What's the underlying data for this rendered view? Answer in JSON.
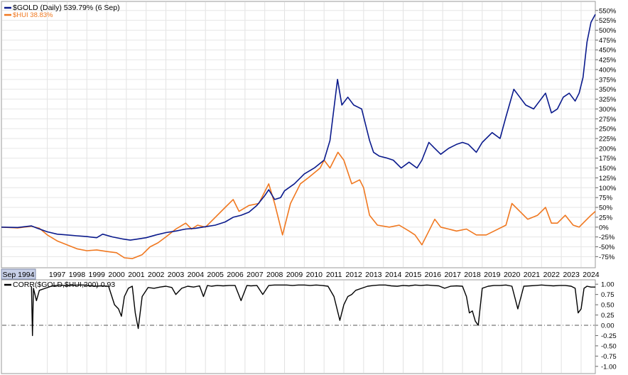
{
  "chart_data": [
    {
      "type": "line",
      "title": "",
      "ylim": [
        -87,
        555
      ],
      "y_ticks": [
        550,
        525,
        500,
        475,
        450,
        425,
        400,
        375,
        350,
        325,
        300,
        275,
        250,
        225,
        200,
        175,
        150,
        125,
        100,
        75,
        50,
        25,
        0,
        -25,
        -50,
        -75
      ],
      "y_tick_labels": [
        "550%",
        "525%",
        "500%",
        "475%",
        "450%",
        "425%",
        "400%",
        "375%",
        "350%",
        "325%",
        "300%",
        "275%",
        "250%",
        "225%",
        "200%",
        "175%",
        "150%",
        "125%",
        "100%",
        "75%",
        "50%",
        "25%",
        "0%",
        "-25%",
        "-50%",
        "-75%"
      ],
      "xlim": [
        1994.68,
        2024.72
      ],
      "x_ticks": [
        1997,
        1998,
        1999,
        2000,
        2001,
        2002,
        2003,
        2004,
        2005,
        2006,
        2007,
        2008,
        2009,
        2010,
        2011,
        2012,
        2013,
        2014,
        2015,
        2016,
        2017,
        2018,
        2019,
        2020,
        2021,
        2022,
        2023,
        2024
      ],
      "x_tick_labels": [
        "1997",
        "1998",
        "1999",
        "2000",
        "2001",
        "2002",
        "2003",
        "2004",
        "2005",
        "2006",
        "2007",
        "2008",
        "2009",
        "2010",
        "2011",
        "2012",
        "2013",
        "2014",
        "2015",
        "2016",
        "2017",
        "2018",
        "2019",
        "2020",
        "2021",
        "2022",
        "2023",
        "2024"
      ],
      "x_start_label": "Sep 1994",
      "grid": true,
      "legend_position": "top-left",
      "series": [
        {
          "name": "$GOLD (Daily) 539.79% (6 Sep)",
          "color": "#0a1a8c",
          "x": [
            1994.68,
            1995.5,
            1996.2,
            1996.5,
            1997.0,
            1997.5,
            1998.0,
            1998.5,
            1999.0,
            1999.5,
            1999.8,
            2000.3,
            2000.8,
            2001.2,
            2001.6,
            2002.0,
            2002.5,
            2003.0,
            2003.5,
            2004.0,
            2004.5,
            2005.0,
            2005.5,
            2006.0,
            2006.4,
            2006.8,
            2007.2,
            2007.6,
            2008.0,
            2008.2,
            2008.5,
            2008.8,
            2009.0,
            2009.5,
            2010.0,
            2010.5,
            2011.0,
            2011.3,
            2011.68,
            2011.9,
            2012.2,
            2012.5,
            2012.9,
            2013.3,
            2013.5,
            2013.8,
            2014.2,
            2014.5,
            2014.9,
            2015.3,
            2015.7,
            2015.95,
            2016.3,
            2016.6,
            2016.9,
            2017.3,
            2017.7,
            2018.0,
            2018.3,
            2018.7,
            2019.0,
            2019.5,
            2019.9,
            2020.2,
            2020.6,
            2020.9,
            2021.2,
            2021.6,
            2021.9,
            2022.2,
            2022.5,
            2022.8,
            2023.1,
            2023.4,
            2023.7,
            2023.9,
            2024.1,
            2024.3,
            2024.5,
            2024.72
          ],
          "values": [
            0,
            -1,
            3,
            -3,
            -12,
            -18,
            -20,
            -22,
            -24,
            -27,
            -18,
            -25,
            -30,
            -33,
            -30,
            -27,
            -20,
            -14,
            -10,
            -5,
            -3,
            1,
            5,
            13,
            25,
            30,
            38,
            55,
            80,
            95,
            70,
            75,
            92,
            110,
            135,
            150,
            170,
            220,
            375,
            310,
            330,
            310,
            300,
            220,
            190,
            180,
            175,
            170,
            150,
            165,
            150,
            170,
            215,
            200,
            185,
            200,
            210,
            215,
            210,
            190,
            215,
            240,
            225,
            280,
            350,
            330,
            310,
            300,
            320,
            340,
            290,
            300,
            330,
            340,
            320,
            340,
            380,
            470,
            520,
            540
          ]
        },
        {
          "name": "$HUI 38.83%",
          "color": "#f07820",
          "x": [
            1994.68,
            1995.5,
            1996.2,
            1996.6,
            1997.0,
            1997.5,
            1998.0,
            1998.5,
            1999.0,
            1999.5,
            2000.0,
            2000.5,
            2000.9,
            2001.3,
            2001.8,
            2002.2,
            2002.6,
            2003.0,
            2003.5,
            2004.0,
            2004.3,
            2004.6,
            2005.0,
            2005.5,
            2006.0,
            2006.4,
            2006.7,
            2007.2,
            2007.7,
            2008.2,
            2008.5,
            2008.9,
            2009.3,
            2009.8,
            2010.2,
            2010.8,
            2011.0,
            2011.3,
            2011.7,
            2012.0,
            2012.4,
            2012.8,
            2013.0,
            2013.3,
            2013.7,
            2014.3,
            2014.8,
            2015.3,
            2015.6,
            2015.95,
            2016.3,
            2016.6,
            2016.9,
            2017.3,
            2017.7,
            2018.2,
            2018.7,
            2019.2,
            2019.6,
            2020.2,
            2020.5,
            2020.9,
            2021.3,
            2021.8,
            2022.2,
            2022.5,
            2022.8,
            2023.2,
            2023.6,
            2023.9,
            2024.2,
            2024.5,
            2024.72
          ],
          "values": [
            0,
            -2,
            2,
            -3,
            -20,
            -35,
            -45,
            -55,
            -60,
            -58,
            -62,
            -65,
            -78,
            -80,
            -70,
            -50,
            -40,
            -25,
            -5,
            10,
            -5,
            5,
            0,
            25,
            50,
            70,
            40,
            55,
            60,
            110,
            60,
            -20,
            60,
            110,
            125,
            150,
            170,
            150,
            190,
            170,
            110,
            120,
            100,
            30,
            5,
            0,
            5,
            -10,
            -20,
            -45,
            -10,
            20,
            0,
            -5,
            -10,
            -5,
            -20,
            -20,
            -10,
            5,
            60,
            40,
            20,
            30,
            50,
            10,
            10,
            30,
            5,
            0,
            15,
            30,
            40
          ]
        }
      ]
    },
    {
      "type": "line",
      "title": "",
      "ylim": [
        -1.02,
        1.02
      ],
      "y_ticks": [
        1.0,
        0.75,
        0.5,
        0.25,
        0.0,
        -0.25,
        -0.5,
        -0.75,
        -1.0
      ],
      "y_tick_labels": [
        "1.00",
        "0.75",
        "0.50",
        "0.25",
        "0.00",
        "-0.25",
        "-0.50",
        "-0.75",
        "-1.00"
      ],
      "zero_line": "dash-dot",
      "legend_position": "top-left",
      "series": [
        {
          "name": "CORR($GOLD,$HUI,200) 0.93",
          "color": "#000000",
          "x": [
            1996.2,
            1996.25,
            1996.3,
            1996.45,
            1996.6,
            1996.9,
            1997.2,
            1997.6,
            1997.9,
            1998.2,
            1998.6,
            1998.9,
            1999.2,
            1999.5,
            1999.7,
            2000.1,
            2000.4,
            2000.6,
            2000.75,
            2000.9,
            2001.1,
            2001.3,
            2001.45,
            2001.6,
            2001.8,
            2002.1,
            2002.4,
            2002.7,
            2003.0,
            2003.3,
            2003.5,
            2003.8,
            2004.1,
            2004.4,
            2004.7,
            2004.9,
            2005.1,
            2005.3,
            2005.6,
            2005.9,
            2006.2,
            2006.5,
            2006.8,
            2007.1,
            2007.3,
            2007.6,
            2007.9,
            2008.2,
            2008.5,
            2008.8,
            2009.1,
            2009.4,
            2009.7,
            2010.0,
            2010.3,
            2010.6,
            2010.9,
            2011.2,
            2011.5,
            2011.8,
            2012.0,
            2012.2,
            2012.4,
            2012.6,
            2012.9,
            2013.2,
            2013.5,
            2013.8,
            2014.1,
            2014.4,
            2014.7,
            2015.0,
            2015.3,
            2015.6,
            2015.9,
            2016.2,
            2016.5,
            2016.8,
            2017.1,
            2017.4,
            2017.7,
            2018.0,
            2018.2,
            2018.35,
            2018.5,
            2018.65,
            2018.8,
            2019.0,
            2019.3,
            2019.6,
            2019.9,
            2020.2,
            2020.5,
            2020.8,
            2021.1,
            2021.4,
            2021.7,
            2022.0,
            2022.3,
            2022.6,
            2022.9,
            2023.2,
            2023.5,
            2023.7,
            2023.85,
            2024.0,
            2024.15,
            2024.3,
            2024.5,
            2024.72
          ],
          "values": [
            0.95,
            -0.25,
            0.9,
            0.6,
            0.85,
            0.9,
            0.95,
            0.98,
            0.97,
            0.97,
            0.98,
            0.98,
            0.96,
            0.95,
            0.96,
            0.95,
            0.5,
            0.4,
            0.22,
            0.7,
            0.9,
            0.95,
            0.3,
            -0.08,
            0.7,
            0.92,
            0.9,
            0.93,
            0.95,
            0.92,
            0.75,
            0.9,
            0.95,
            0.93,
            0.96,
            0.7,
            0.97,
            0.95,
            0.97,
            0.96,
            0.97,
            0.97,
            0.6,
            0.97,
            0.96,
            0.97,
            0.75,
            0.97,
            0.98,
            0.98,
            0.98,
            0.97,
            0.98,
            0.98,
            0.97,
            0.98,
            0.97,
            0.95,
            0.7,
            0.12,
            0.5,
            0.7,
            0.75,
            0.85,
            0.9,
            0.95,
            0.97,
            0.98,
            0.98,
            0.96,
            0.95,
            0.97,
            0.96,
            0.98,
            0.97,
            0.98,
            0.97,
            0.96,
            0.9,
            0.95,
            0.96,
            0.95,
            0.7,
            0.3,
            0.35,
            0.1,
            0.0,
            0.9,
            0.95,
            0.97,
            0.97,
            0.98,
            0.95,
            0.4,
            0.95,
            0.96,
            0.97,
            0.98,
            0.97,
            0.96,
            0.97,
            0.97,
            0.95,
            0.9,
            0.3,
            0.4,
            0.9,
            0.95,
            0.93,
            0.93
          ]
        }
      ]
    }
  ]
}
